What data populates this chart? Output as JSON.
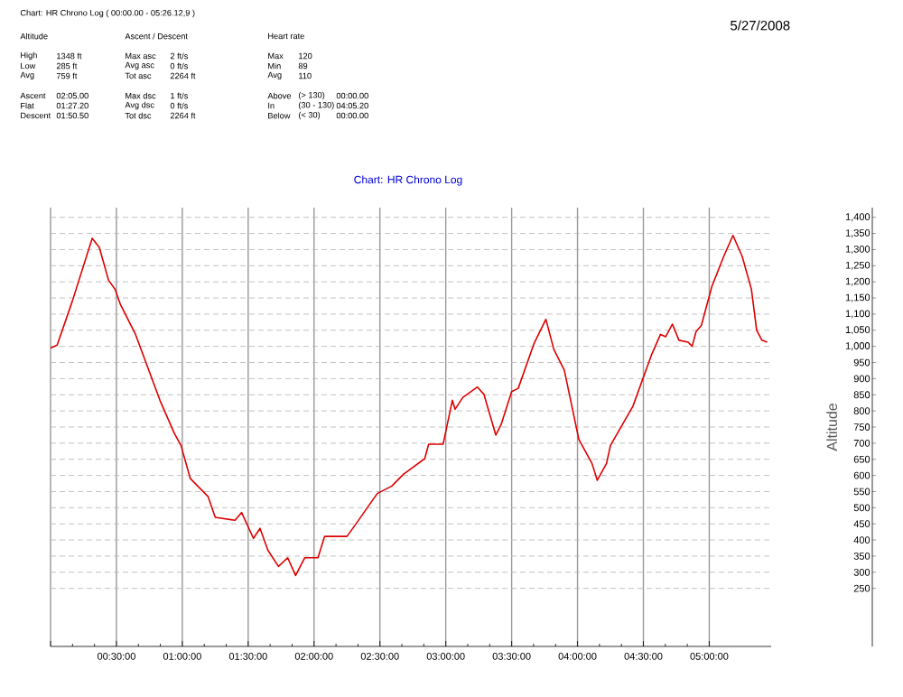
{
  "chart_data": {
    "type": "line",
    "title": "Chart: HR Chrono Log  ( 00:00.00 - 05:26.12,9 )",
    "subtitle": "Chart: HR Chrono Log",
    "ylabel": "Altitude",
    "annotations": [
      "5/27/2008",
      "Altitude",
      "Ascent / Descent",
      "Heart rate",
      "High",
      "1348 ft",
      "Low",
      "285 ft",
      "Avg",
      "759 ft",
      "Ascent",
      "02:05.00",
      "Flat",
      "01:27.20",
      "Descent",
      "01:50.50",
      "Max asc",
      "2 ft/s",
      "Avg asc",
      "0 ft/s",
      "Tot asc",
      "2264 ft",
      "Max dsc",
      "1 ft/s",
      "Avg dsc",
      "0 ft/s",
      "Tot dsc",
      "2264 ft",
      "Max",
      "120",
      "Min",
      "89",
      "Avg",
      "110",
      "Above",
      "(> 130)",
      "00:00.00",
      "In",
      "(30 - 130)",
      "04:05.20",
      "Below",
      "(< 30)",
      "00:00.00"
    ],
    "x": [
      0,
      0.05,
      0.165,
      0.316,
      0.37,
      0.44,
      0.49,
      0.53,
      0.645,
      0.83,
      0.94,
      0.99,
      1.06,
      1.195,
      1.25,
      1.4,
      1.45,
      1.54,
      1.59,
      1.65,
      1.73,
      1.8,
      1.86,
      1.93,
      2.03,
      2.08,
      2.25,
      2.32,
      2.48,
      2.59,
      2.68,
      2.84,
      2.87,
      2.98,
      3.05,
      3.07,
      3.13,
      3.24,
      3.29,
      3.38,
      3.42,
      3.5,
      3.55,
      3.67,
      3.76,
      3.82,
      3.9,
      4.01,
      4.11,
      4.15,
      4.22,
      4.25,
      4.42,
      4.56,
      4.63,
      4.67,
      4.72,
      4.77,
      4.84,
      4.87,
      4.9,
      4.94,
      5.02,
      5.11,
      5.18,
      5.25,
      5.32,
      5.36,
      5.4,
      5.44
    ],
    "series": [
      {
        "color": "#dd0000",
        "values": [
          995,
          1004,
          1140,
          1335,
          1307,
          1205,
          1177,
          1130,
          1037,
          833,
          730,
          693,
          591,
          535,
          470,
          461,
          485,
          405,
          436,
          368,
          318,
          345,
          290,
          345,
          345,
          411,
          411,
          451,
          544,
          567,
          604,
          652,
          697,
          697,
          833,
          805,
          842,
          874,
          851,
          725,
          758,
          860,
          870,
          1009,
          1084,
          991,
          926,
          712,
          637,
          585,
          637,
          693,
          814,
          972,
          1037,
          1030,
          1069,
          1019,
          1013,
          1000,
          1046,
          1065,
          1186,
          1279,
          1344,
          1279,
          1177,
          1050,
          1019,
          1013
        ]
      }
    ],
    "xlim": [
      0,
      5.47
    ],
    "ylim": [
      70,
      1430
    ],
    "xticks": [
      {
        "value": 0,
        "label": null
      },
      {
        "value": 0.5,
        "label": "00:30:00"
      },
      {
        "value": 1,
        "label": "01:00:00"
      },
      {
        "value": 1.5,
        "label": "01:30:00"
      },
      {
        "value": 2,
        "label": "02:00:00"
      },
      {
        "value": 2.5,
        "label": "02:30:00"
      },
      {
        "value": 3,
        "label": "03:00:00"
      },
      {
        "value": 3.5,
        "label": "03:30:00"
      },
      {
        "value": 4,
        "label": "04:00:00"
      },
      {
        "value": 4.5,
        "label": "04:30:00"
      },
      {
        "value": 5,
        "label": "05:00:00"
      }
    ],
    "yticks": [
      250,
      300,
      350,
      400,
      450,
      500,
      550,
      600,
      650,
      700,
      750,
      800,
      850,
      900,
      950,
      {
        "value": 1000,
        "label": "1,000"
      },
      {
        "value": 1050,
        "label": "1,050"
      },
      {
        "value": 1100,
        "label": "1,100"
      },
      {
        "value": 1150,
        "label": "1,150"
      },
      {
        "value": 1200,
        "label": "1,200"
      },
      {
        "value": 1250,
        "label": "1,250"
      },
      {
        "value": 1300,
        "label": "1,300"
      },
      {
        "value": 1350,
        "label": "1,350"
      },
      {
        "value": 1400,
        "label": "1,400"
      }
    ],
    "grid": true
  }
}
